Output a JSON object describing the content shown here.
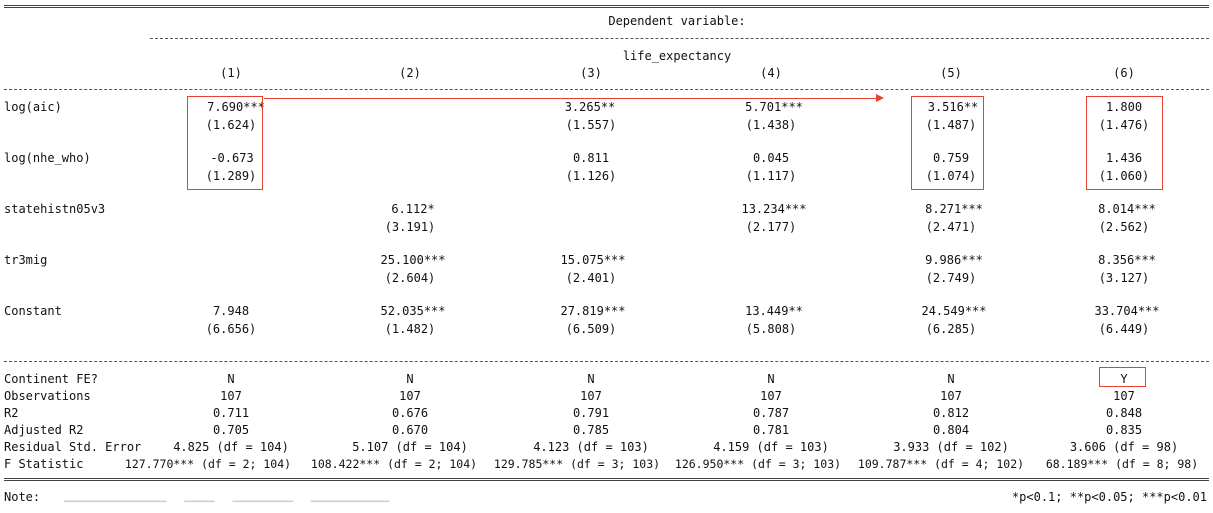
{
  "header": {
    "dep_var_caption": "Dependent variable:",
    "dep_var_name": "life_expectancy",
    "columns": [
      "(1)",
      "(2)",
      "(3)",
      "(4)",
      "(5)",
      "(6)"
    ]
  },
  "coefficients": [
    {
      "name": "log(aic)",
      "coef": [
        "7.690***",
        "",
        "3.265**",
        "5.701***",
        "3.516**",
        "1.800"
      ],
      "se": [
        "(1.624)",
        "",
        "(1.557)",
        "(1.438)",
        "(1.487)",
        "(1.476)"
      ]
    },
    {
      "name": "log(nhe_who)",
      "coef": [
        "-0.673",
        "",
        "0.811",
        "0.045",
        "0.759",
        "1.436"
      ],
      "se": [
        "(1.289)",
        "",
        "(1.126)",
        "(1.117)",
        "(1.074)",
        "(1.060)"
      ]
    },
    {
      "name": "statehistn05v3",
      "coef": [
        "",
        "6.112*",
        "",
        "13.234***",
        "8.271***",
        "8.014***"
      ],
      "se": [
        "",
        "(3.191)",
        "",
        "(2.177)",
        "(2.471)",
        "(2.562)"
      ]
    },
    {
      "name": "tr3mig",
      "coef": [
        "",
        "25.100***",
        "15.075***",
        "",
        "9.986***",
        "8.356***"
      ],
      "se": [
        "",
        "(2.604)",
        "(2.401)",
        "",
        "(2.749)",
        "(3.127)"
      ]
    },
    {
      "name": "Constant",
      "coef": [
        "7.948",
        "52.035***",
        "27.819***",
        "13.449**",
        "24.549***",
        "33.704***"
      ],
      "se": [
        "(6.656)",
        "(1.482)",
        "(6.509)",
        "(5.808)",
        "(6.285)",
        "(6.449)"
      ]
    }
  ],
  "stats": [
    {
      "name": "Continent FE?",
      "values": [
        "N",
        "N",
        "N",
        "N",
        "N",
        "Y"
      ]
    },
    {
      "name": "Observations",
      "values": [
        "107",
        "107",
        "107",
        "107",
        "107",
        "107"
      ]
    },
    {
      "name": "R2",
      "values": [
        "0.711",
        "0.676",
        "0.791",
        "0.787",
        "0.812",
        "0.848"
      ]
    },
    {
      "name": "Adjusted R2",
      "values": [
        "0.705",
        "0.670",
        "0.785",
        "0.781",
        "0.804",
        "0.835"
      ]
    },
    {
      "name": "Residual Std. Error",
      "values": [
        "4.825 (df = 104)",
        "5.107 (df = 104)",
        "4.123 (df = 103)",
        "4.159 (df = 103)",
        "3.933 (df = 102)",
        "3.606 (df = 98)"
      ]
    },
    {
      "name": "F Statistic",
      "values": [
        "127.770*** (df = 2; 104)",
        "108.422*** (df = 2; 104)",
        "129.785*** (df = 3; 103)",
        "126.950*** (df = 3; 103)",
        "109.787*** (df = 4; 102)",
        "68.189*** (df = 8; 98)"
      ]
    }
  ],
  "footer": {
    "note_label": "Note:",
    "significance": "*p<0.1; **p<0.05; ***p<0.01"
  },
  "annotation_color": "#e8412f"
}
